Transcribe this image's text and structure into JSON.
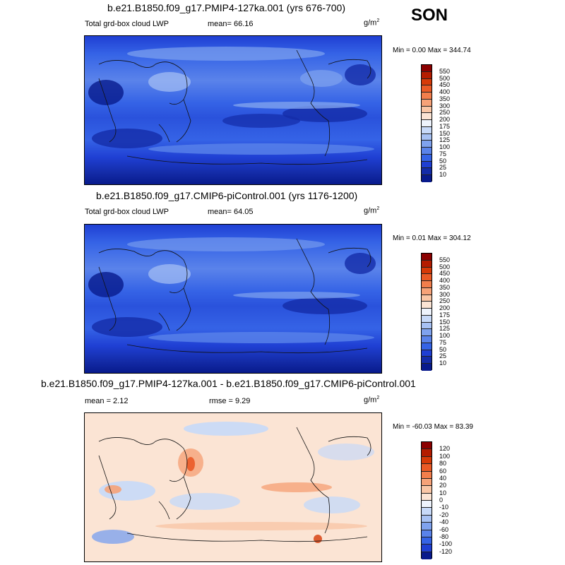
{
  "season": "SON",
  "panels": [
    {
      "title": "b.e21.B1850.f09_g17.PMIP4-127ka.001 (yrs 676-700)",
      "left_label": "Total grd-box cloud LWP",
      "center_label": "mean=  66.16",
      "units": "g/m",
      "units_sup": "2",
      "minmax": "Min =   0.00 Max = 344.74",
      "type": "absolute",
      "mean_value": 66.16,
      "min_value": 0.0,
      "max_value": 344.74
    },
    {
      "title": "b.e21.B1850.f09_g17.CMIP6-piControl.001 (yrs 1176-1200)",
      "left_label": "Total grd-box cloud LWP",
      "center_label": "mean=  64.05",
      "units": "g/m",
      "units_sup": "2",
      "minmax": "Min =   0.01 Max = 304.12",
      "type": "absolute",
      "mean_value": 64.05,
      "min_value": 0.01,
      "max_value": 304.12
    },
    {
      "title": "b.e21.B1850.f09_g17.PMIP4-127ka.001 - b.e21.B1850.f09_g17.CMIP6-piControl.001",
      "left_label": "mean =   2.12",
      "center_label": "rmse =   9.29",
      "units": "g/m",
      "units_sup": "2",
      "minmax": "Min = -60.03 Max =  83.39",
      "type": "difference",
      "mean_value": 2.12,
      "rmse_value": 9.29,
      "min_value": -60.03,
      "max_value": 83.39
    }
  ],
  "colorbar_abs": {
    "labels": [
      "550",
      "500",
      "450",
      "400",
      "350",
      "300",
      "250",
      "200",
      "175",
      "150",
      "125",
      "100",
      "75",
      "50",
      "25",
      "10"
    ],
    "colors": [
      "#8b0000",
      "#b41c00",
      "#d63a08",
      "#ea5a26",
      "#f27e4c",
      "#f6a278",
      "#f9c6a6",
      "#fbe4d4",
      "#eef3fc",
      "#c7d9f8",
      "#a7c1f3",
      "#7fa2ee",
      "#5a83ea",
      "#3563e6",
      "#1f3fd3",
      "#142ca8",
      "#081a8c"
    ]
  },
  "colorbar_diff": {
    "labels": [
      "120",
      "100",
      "80",
      "60",
      "40",
      "20",
      "10",
      "0",
      "-10",
      "-20",
      "-40",
      "-60",
      "-80",
      "-100",
      "-120"
    ],
    "colors": [
      "#8b0000",
      "#b41c00",
      "#d63a08",
      "#ea5a26",
      "#f27e4c",
      "#f6a278",
      "#f9c6a6",
      "#fbe4d4",
      "#eef3fc",
      "#c7d9f8",
      "#a7c1f3",
      "#7fa2ee",
      "#5a83ea",
      "#3563e6",
      "#1f3fd3",
      "#081a8c"
    ]
  }
}
